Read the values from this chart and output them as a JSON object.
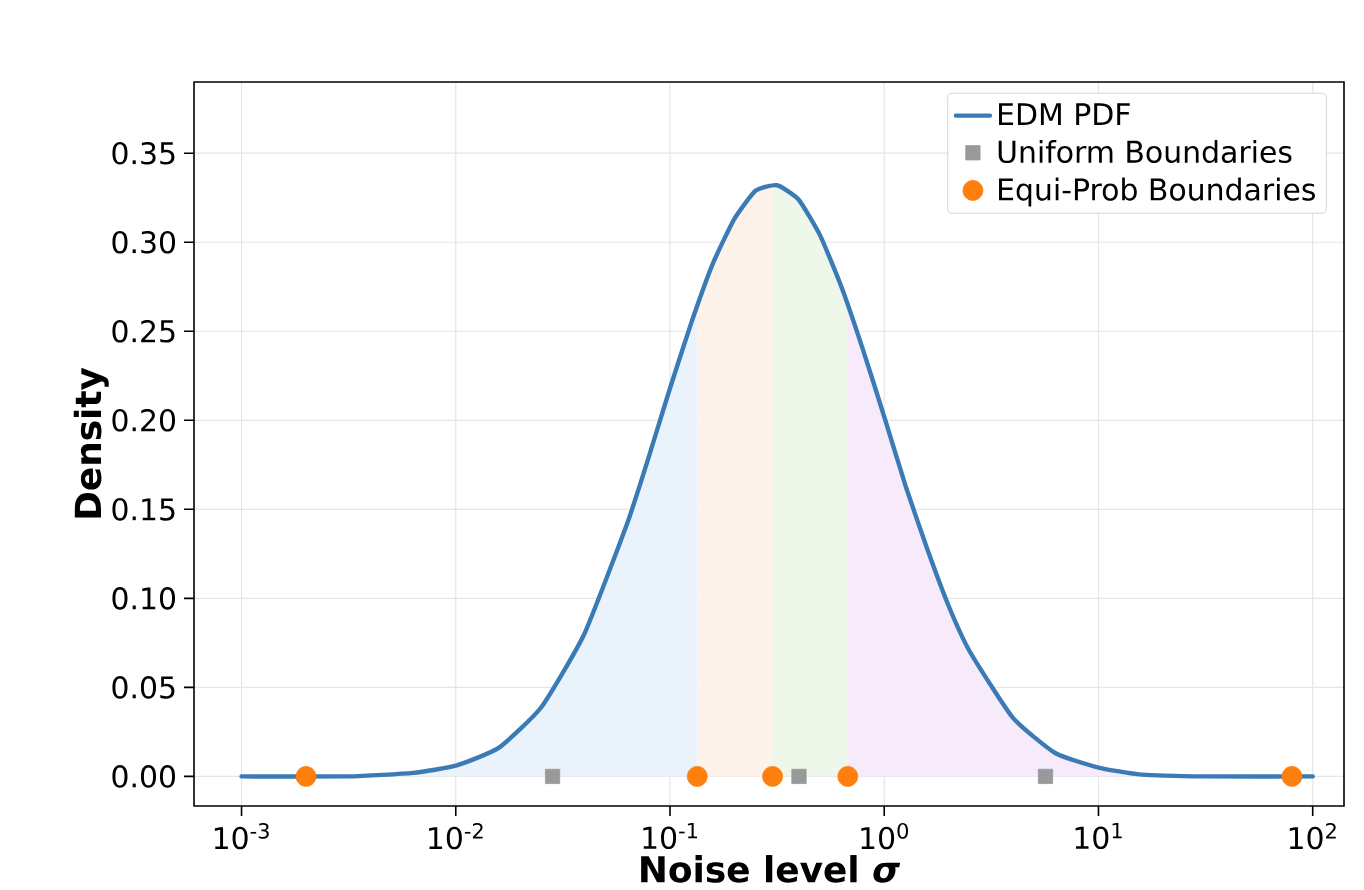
{
  "chart_data": {
    "type": "line",
    "xlabel": "Noise level *σ*",
    "ylabel": "Density",
    "log": "x",
    "grid": true,
    "legend": "top right",
    "xlim": [
      0.0006,
      140
    ],
    "ylim": [
      -0.0166,
      0.39
    ],
    "xticks": [
      {
        "value": 0.001,
        "label": "10$^{-3}$"
      },
      {
        "value": 0.01,
        "label": "10$^{-2}$"
      },
      {
        "value": 0.1,
        "label": "10$^{-1}$"
      },
      {
        "value": 1,
        "label": "10$^{0}$"
      },
      {
        "value": 10,
        "label": "10$^{1}$"
      },
      {
        "value": 100,
        "label": "10$^{2}$"
      }
    ],
    "yticks": [
      {
        "value": 0,
        "label": "0.00"
      },
      {
        "value": 0.05,
        "label": "0.05"
      },
      {
        "value": 0.1,
        "label": "0.10"
      },
      {
        "value": 0.15,
        "label": "0.15"
      },
      {
        "value": 0.2,
        "label": "0.20"
      },
      {
        "value": 0.25,
        "label": "0.25"
      },
      {
        "value": 0.3,
        "label": "0.30"
      },
      {
        "value": 0.35,
        "label": "0.35"
      }
    ],
    "series": [
      {
        "type": "area",
        "color": "#eaf3fc",
        "x": [
          0.002,
          0.00316,
          0.00631,
          0.01,
          0.01585,
          0.02512,
          0.03981,
          0.0631,
          0.07943,
          0.1,
          0.1259,
          0.134
        ],
        "values": [
          0,
          0,
          0.002,
          0.006,
          0.016,
          0.039,
          0.08,
          0.142,
          0.179,
          0.218,
          0.255,
          0.265
        ]
      },
      {
        "type": "area",
        "color": "#fef3ea",
        "x": [
          0.134,
          0.1585,
          0.1995,
          0.2512,
          0.301
        ],
        "values": [
          0.265,
          0.288,
          0.313,
          0.329,
          0.332
        ]
      },
      {
        "type": "area",
        "color": "#eef7ea",
        "x": [
          0.301,
          0.3162,
          0.3981,
          0.5012,
          0.631,
          0.676
        ],
        "values": [
          0.332,
          0.332,
          0.324,
          0.304,
          0.275,
          0.265
        ]
      },
      {
        "type": "area",
        "color": "#f7eafa",
        "x": [
          0.676,
          0.7943,
          1,
          1.259,
          1.585,
          1.995,
          2.512,
          3.981,
          6.31,
          10,
          15.85,
          31.62,
          80
        ],
        "values": [
          0.265,
          0.24,
          0.202,
          0.163,
          0.128,
          0.096,
          0.07,
          0.033,
          0.013,
          0.005,
          0.001,
          0,
          0
        ]
      },
      {
        "name": "EDM PDF",
        "color": "#3a7ab5",
        "line_style": "solid",
        "x": [
          0.001,
          0.00316,
          0.00631,
          0.01,
          0.01585,
          0.02512,
          0.03981,
          0.0631,
          0.07943,
          0.1,
          0.1259,
          0.1585,
          0.1995,
          0.2512,
          0.3162,
          0.3981,
          0.5012,
          0.631,
          0.7943,
          1,
          1.259,
          1.585,
          1.995,
          2.512,
          3.981,
          6.31,
          10,
          15.85,
          31.62,
          100
        ],
        "values": [
          0,
          0,
          0.002,
          0.006,
          0.016,
          0.039,
          0.08,
          0.142,
          0.179,
          0.218,
          0.255,
          0.288,
          0.313,
          0.329,
          0.332,
          0.324,
          0.304,
          0.275,
          0.24,
          0.202,
          0.163,
          0.128,
          0.096,
          0.07,
          0.033,
          0.013,
          0.005,
          0.001,
          0,
          0
        ]
      },
      {
        "type": "scatter",
        "name": "Uniform Boundaries",
        "color": "#999999",
        "marker": "square",
        "x": [
          0.0283,
          0.4,
          5.66
        ],
        "values": [
          0,
          0,
          0
        ]
      },
      {
        "type": "scatter",
        "name": "Equi-Prob Boundaries",
        "color": "#ff7f0e",
        "marker": "circle",
        "x": [
          0.002,
          0.134,
          0.301,
          0.676,
          80
        ],
        "values": [
          0,
          0,
          0,
          0,
          0
        ]
      }
    ]
  }
}
